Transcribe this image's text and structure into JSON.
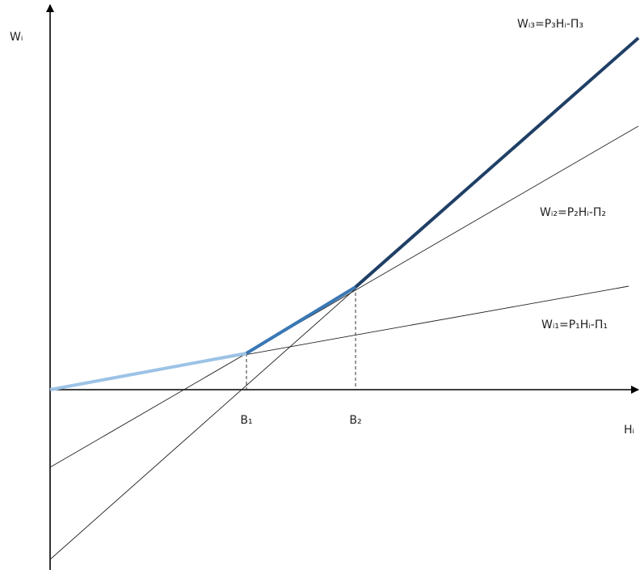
{
  "axes": {
    "y_label": "Wᵢ",
    "x_label": "Hᵢ"
  },
  "points": {
    "b1": "B₁",
    "b2": "B₂"
  },
  "lines": {
    "w3": "Wᵢ₃=P₃Hᵢ-П₃",
    "w2": "Wᵢ₂=P₂Hᵢ-П₂",
    "w1": "Wᵢ₁=P₁Hᵢ-П₁"
  }
}
